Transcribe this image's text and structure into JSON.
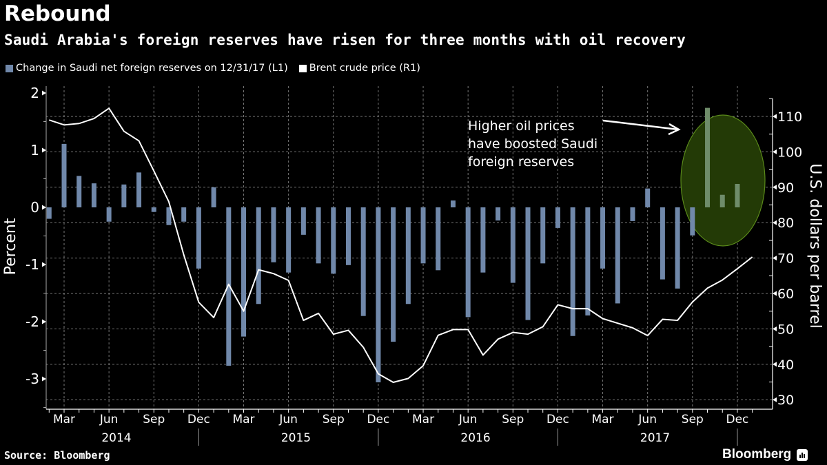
{
  "header": {
    "title": "Rebound",
    "subtitle": "Saudi Arabia's foreign reserves have risen for three months with oil recovery"
  },
  "legend": [
    {
      "label": "Change in Saudi net foreign reserves on 12/31/17 (L1)",
      "color": "#7088aa"
    },
    {
      "label": "Brent crude price (R1)",
      "color": "#ffffff"
    }
  ],
  "footer": {
    "source": "Source: Bloomberg",
    "brand": "Bloomberg"
  },
  "chart_data": {
    "type": "bar+line",
    "title": "Rebound",
    "subtitle": "Saudi Arabia's foreign reserves have risen for three months with oil recovery",
    "ylabel_left": "Percent",
    "ylabel_right": "U.S. dollars per barrel",
    "ylim_left": [
      -3.5,
      2.2
    ],
    "ylim_right": [
      27,
      115
    ],
    "yticks_left": [
      2,
      1,
      0,
      -1,
      -2,
      -3
    ],
    "yticks_right": [
      110,
      100,
      90,
      80,
      70,
      60,
      50,
      40,
      30
    ],
    "grid": true,
    "x_month_labels": [
      "Mar",
      "Jun",
      "Sep",
      "Dec",
      "Mar",
      "Jun",
      "Sep",
      "Dec",
      "Mar",
      "Jun",
      "Sep",
      "Dec",
      "Mar",
      "Jun",
      "Sep",
      "Dec"
    ],
    "x_year_labels": [
      "2014",
      "2015",
      "2016",
      "2017"
    ],
    "legend_position": "top-left",
    "annotation": {
      "text_lines": [
        "Higher oil prices",
        "have boosted Saudi",
        "foreign reserves"
      ],
      "highlight_color": "#233a06",
      "highlight_border": "#5a8a1a"
    },
    "series": [
      {
        "name": "Change in Saudi net foreign reserves on 12/31/17 (L1)",
        "type": "bar",
        "axis": "left",
        "color": "#7088aa",
        "start": "2014-02",
        "values": [
          -0.2,
          1.11,
          0.55,
          0.42,
          -0.25,
          0.4,
          0.61,
          -0.08,
          -0.31,
          -0.25,
          -1.07,
          0.35,
          -2.77,
          -2.26,
          -1.69,
          -0.96,
          -1.14,
          -0.48,
          -0.98,
          -1.16,
          -1.01,
          -1.9,
          -3.06,
          -2.35,
          -1.69,
          -0.98,
          -1.1,
          0.12,
          -1.92,
          -1.14,
          -0.23,
          -1.32,
          -1.97,
          -0.98,
          -0.36,
          -2.25,
          -1.89,
          -1.07,
          -1.68,
          -0.24,
          0.33,
          -1.26,
          -1.42,
          -0.49,
          1.74,
          0.22,
          0.41
        ]
      },
      {
        "name": "Brent crude price (R1)",
        "type": "line",
        "axis": "right",
        "color": "#ffffff",
        "start": "2014-02",
        "values": [
          109.0,
          107.6,
          108.0,
          109.4,
          112.3,
          105.8,
          103.1,
          94.6,
          85.9,
          70.9,
          57.5,
          53.2,
          62.6,
          55.0,
          66.7,
          65.6,
          63.7,
          52.4,
          54.4,
          48.5,
          49.6,
          44.8,
          37.3,
          34.9,
          36.0,
          39.6,
          48.2,
          49.8,
          49.8,
          42.6,
          47.1,
          49.0,
          48.5,
          50.6,
          56.8,
          55.7,
          55.7,
          52.9,
          51.6,
          50.3,
          48.1,
          52.7,
          52.4,
          57.6,
          61.5,
          63.8,
          67.0,
          70.3
        ]
      }
    ]
  }
}
